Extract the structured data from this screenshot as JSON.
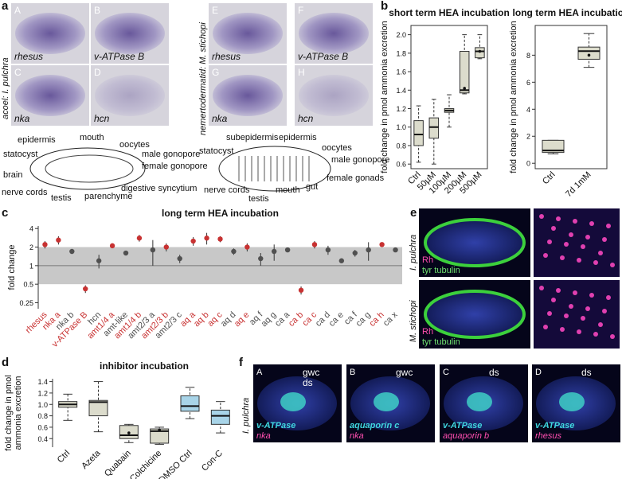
{
  "panel_labels": [
    "a",
    "b",
    "c",
    "d",
    "e",
    "f"
  ],
  "a": {
    "species_left": "acoel: I. pulchra",
    "species_right": "nemertodermatid: M. stichopi",
    "images": [
      {
        "letter": "A",
        "gene": "rhesus"
      },
      {
        "letter": "B",
        "gene": "v-ATPase B"
      },
      {
        "letter": "C",
        "gene": "nka"
      },
      {
        "letter": "D",
        "gene": "hcn"
      },
      {
        "letter": "E",
        "gene": "rhesus"
      },
      {
        "letter": "F",
        "gene": "v-ATPase B"
      },
      {
        "letter": "G",
        "gene": "nka"
      },
      {
        "letter": "H",
        "gene": "hcn"
      }
    ],
    "left_diagram": [
      "epidermis",
      "mouth",
      "oocytes",
      "statocyst",
      "male gonopore",
      "female gonopore",
      "brain",
      "digestive syncytium",
      "nerve cords",
      "testis",
      "parenchyme"
    ],
    "right_diagram": [
      "subepidermis",
      "epidermis",
      "statocyst",
      "oocytes",
      "male gonopore",
      "nerve cords",
      "mouth",
      "gut",
      "female gonads",
      "testis"
    ]
  },
  "e": {
    "species": [
      "I. pulchra",
      "M. stichopi"
    ],
    "stain_red": "Rh",
    "stain_green": "tyr tubulin"
  },
  "f": {
    "species": "I. pulchra",
    "images": [
      {
        "letter": "A",
        "green": "v-ATPase",
        "magenta": "nka",
        "callouts": [
          "gwc",
          "ds"
        ]
      },
      {
        "letter": "B",
        "green": "aquaporin c",
        "magenta": "nka",
        "callouts": [
          "gwc"
        ]
      },
      {
        "letter": "C",
        "green": "v-ATPase",
        "magenta": "aquaporin b",
        "callouts": [
          "ds"
        ]
      },
      {
        "letter": "D",
        "green": "v-ATPase",
        "magenta": "rhesus",
        "callouts": [
          "ds"
        ]
      }
    ]
  },
  "chart_data": [
    {
      "type": "box",
      "title": "short term HEA incubation",
      "ylabel": "fold change in pmol ammonia excretion",
      "frame": true,
      "categories": [
        "Ctrl",
        "50µM",
        "100µM",
        "200µM",
        "500µM"
      ],
      "whisker_low": [
        0.62,
        0.6,
        1.0,
        1.36,
        1.74
      ],
      "q1": [
        0.8,
        0.88,
        1.16,
        1.37,
        1.75
      ],
      "median": [
        0.92,
        1.0,
        1.18,
        1.4,
        1.82
      ],
      "q3": [
        1.07,
        1.1,
        1.2,
        1.82,
        1.86
      ],
      "whisker_high": [
        1.23,
        1.3,
        1.35,
        2.0,
        2.0
      ],
      "means": [
        null,
        null,
        null,
        1.42,
        1.82
      ],
      "colors": [
        "#dcdccc",
        "#dcdccc",
        "#dcdccc",
        "#dcdccc",
        "#dcdccc"
      ],
      "ylim": [
        0.55,
        2.1
      ],
      "yticks": [
        0.6,
        0.8,
        {
          "value": 1,
          "label": "1.0"
        },
        1.2,
        1.4,
        1.6,
        1.8,
        {
          "value": 2,
          "label": "2.0"
        }
      ]
    },
    {
      "type": "box",
      "title": "long term HEA incubation",
      "ylabel": "fold change in pmol ammonia excretion",
      "frame": true,
      "categories": [
        "Ctrl",
        "7d 1mM"
      ],
      "whisker_low": [
        0.7,
        7.1
      ],
      "q1": [
        0.8,
        7.7
      ],
      "median": [
        0.95,
        8.3
      ],
      "q3": [
        1.7,
        8.6
      ],
      "whisker_high": [
        1.7,
        9.6
      ],
      "means": [
        null,
        8.0
      ],
      "colors": [
        "#dcdccc",
        "#dcdccc"
      ],
      "ylim": [
        -0.4,
        10.2
      ],
      "yticks": [
        0,
        2,
        4,
        6,
        8
      ]
    },
    {
      "type": "dot",
      "title": "long term HEA incubation",
      "ylabel": "fold change",
      "log": true,
      "shaded_band": [
        0.5,
        2
      ],
      "reference_line": 1,
      "categories": [
        "rhesus",
        "nka a",
        "nka b",
        "v-ATPase B",
        "hcn",
        "amt1/4 a",
        "amt-like",
        "amt1/4 b",
        "amt2/3 a",
        "amt2/3 b",
        "amt2/3 c",
        "aq a",
        "aq b",
        "aq c",
        "aq d",
        "aq e",
        "aq f",
        "aq g",
        "ca a",
        "ca b",
        "ca c",
        "ca d",
        "ca e",
        "ca f",
        "ca g",
        "ca h",
        "ca x"
      ],
      "values": [
        2.2,
        2.6,
        1.7,
        0.42,
        1.2,
        2.1,
        1.6,
        2.8,
        1.8,
        2.0,
        1.3,
        2.5,
        2.8,
        2.7,
        1.7,
        2.0,
        1.3,
        1.7,
        1.8,
        0.4,
        2.2,
        1.8,
        1.2,
        1.6,
        1.8,
        2.2,
        1.8
      ],
      "errors": [
        0.3,
        0.4,
        0.15,
        0.06,
        0.3,
        0.15,
        0.1,
        0.35,
        0.8,
        0.3,
        0.2,
        0.4,
        0.6,
        0.3,
        0.2,
        0.3,
        0.3,
        0.5,
        0.1,
        0.06,
        0.3,
        0.3,
        0.1,
        0.2,
        0.6,
        0.15,
        0.15
      ],
      "colors": [
        "#c83232",
        "#c83232",
        "#505050",
        "#c83232",
        "#505050",
        "#c83232",
        "#505050",
        "#c83232",
        "#505050",
        "#c83232",
        "#505050",
        "#c83232",
        "#c83232",
        "#c83232",
        "#505050",
        "#c83232",
        "#505050",
        "#505050",
        "#505050",
        "#c83232",
        "#c83232",
        "#505050",
        "#505050",
        "#505050",
        "#505050",
        "#c83232",
        "#505050"
      ],
      "ylim": [
        0.2,
        4.4
      ],
      "yticks": [
        0.25,
        0.5,
        1,
        2,
        4
      ]
    },
    {
      "type": "box",
      "title": "inhibitor incubation",
      "ylabel": [
        "fold change in pmol",
        "ammonia excretion"
      ],
      "frame": false,
      "categories": [
        "Ctrl",
        "Azeta",
        "Quabain",
        "Colchicine",
        "DMSO Ctrl",
        "Con-C"
      ],
      "whisker_low": [
        0.72,
        0.52,
        0.33,
        0.3,
        0.75,
        0.5
      ],
      "q1": [
        0.95,
        0.8,
        0.4,
        0.32,
        0.88,
        0.65
      ],
      "median": [
        1.0,
        1.04,
        0.46,
        0.53,
        0.97,
        0.8
      ],
      "q3": [
        1.05,
        1.07,
        0.63,
        0.57,
        1.15,
        0.9
      ],
      "whisker_high": [
        1.18,
        1.4,
        0.65,
        0.6,
        1.3,
        1.05
      ],
      "means": [
        null,
        null,
        0.5,
        0.55,
        null,
        null
      ],
      "colors": [
        "#dcdccc",
        "#dcdccc",
        "#dcdccc",
        "#dcdccc",
        "#a8d4e8",
        "#a8d4e8"
      ],
      "ylim": [
        0.25,
        1.45
      ],
      "yticks": [
        0.4,
        0.6,
        0.8,
        {
          "value": 1,
          "label": "1.0"
        },
        1.2,
        1.4
      ]
    }
  ]
}
